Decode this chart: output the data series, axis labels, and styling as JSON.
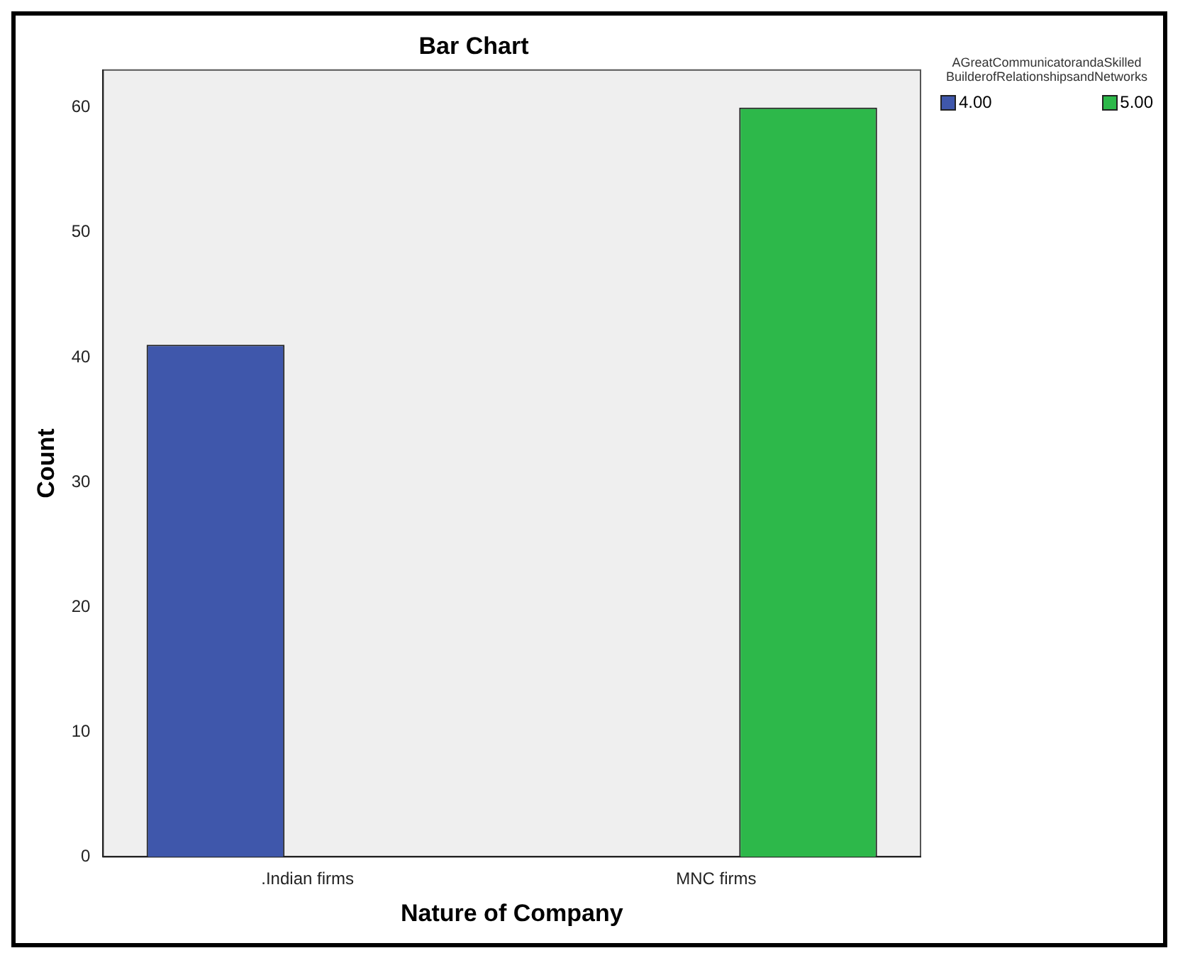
{
  "chart_data": {
    "type": "bar",
    "title": "Bar Chart",
    "xlabel": "Nature of Company",
    "ylabel": "Count",
    "legend_title": "AGreatCommunicatorandaSkilled BuilderofRelationshipsandNetworks",
    "categories": [
      ".Indian firms",
      "MNC firms"
    ],
    "series": [
      {
        "name": "4.00",
        "color": "#3f57ab",
        "values": [
          41,
          null
        ]
      },
      {
        "name": "5.00",
        "color": "#2db84a",
        "values": [
          null,
          60
        ]
      }
    ],
    "ylim": [
      0,
      63
    ],
    "yticks": [
      0,
      10,
      20,
      30,
      40,
      50,
      60
    ],
    "grid": false,
    "legend": "top right"
  }
}
